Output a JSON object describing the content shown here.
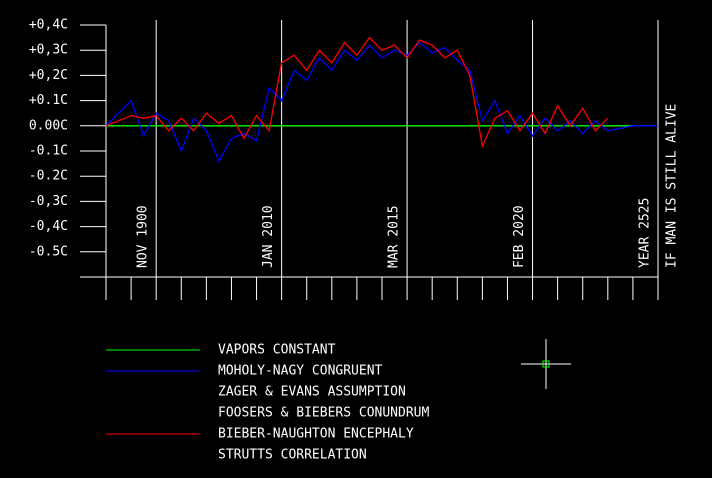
{
  "chart_data": {
    "type": "line",
    "x": [
      0,
      0.5,
      1,
      1.5,
      2,
      2.5,
      3,
      3.5,
      4,
      4.5,
      5,
      5.5,
      6,
      6.5,
      7,
      7.5,
      8,
      8.5,
      9,
      9.5,
      10,
      10.5,
      11,
      11.5,
      12,
      12.5,
      13,
      13.5,
      14,
      14.5,
      15,
      15.5,
      16,
      16.5,
      17,
      17.5,
      18,
      18.5,
      19,
      19.5,
      20,
      20.5,
      21,
      21.5,
      22
    ],
    "series": [
      {
        "color": "#00ff00",
        "values": [
          0,
          0,
          0,
          0,
          0,
          0,
          0,
          0,
          0,
          0,
          0,
          0,
          0,
          0,
          0,
          0,
          0,
          0,
          0,
          0,
          0,
          0,
          0,
          0,
          0,
          0,
          0,
          0,
          0,
          0,
          0,
          0,
          0,
          0,
          0,
          0,
          0,
          0,
          0,
          0,
          0,
          0,
          0,
          0,
          0
        ]
      },
      {
        "color": "#0000ff",
        "values": [
          0,
          0.05,
          0.1,
          -0.04,
          0.05,
          0.02,
          -0.1,
          0.03,
          -0.02,
          -0.14,
          -0.05,
          -0.03,
          -0.06,
          0.15,
          0.1,
          0.22,
          0.18,
          0.27,
          0.22,
          0.3,
          0.26,
          0.32,
          0.27,
          0.3,
          0.28,
          0.33,
          0.29,
          0.31,
          0.26,
          0.22,
          0.02,
          0.1,
          -0.03,
          0.04,
          -0.04,
          0.03,
          -0.02,
          0.02,
          -0.03,
          0.02,
          -0.02,
          -0.01,
          0,
          0,
          0
        ]
      },
      {
        "color": "#ff0000",
        "values": [
          0,
          0.02,
          0.04,
          0.03,
          0.04,
          -0.02,
          0.03,
          -0.02,
          0.05,
          0.01,
          0.04,
          -0.05,
          0.04,
          -0.02,
          0.25,
          0.28,
          0.22,
          0.3,
          0.25,
          0.33,
          0.28,
          0.35,
          0.3,
          0.32,
          0.27,
          0.34,
          0.32,
          0.27,
          0.3,
          0.2,
          -0.08,
          0.03,
          0.06,
          -0.02,
          0.05,
          -0.03,
          0.08,
          0,
          0.07,
          -0.02,
          0.03,
          null,
          null,
          null,
          null
        ]
      }
    ],
    "legend": [
      {
        "label": "VAPORS CONSTANT",
        "color": "#00ff00"
      },
      {
        "label": "MOHOLY-NAGY CONGRUENT",
        "color": "#0000ff"
      },
      {
        "label": "ZAGER & EVANS ASSUMPTION",
        "color": null
      },
      {
        "label": "FOOSERS & BIEBERS CONUNDRUM",
        "color": null
      },
      {
        "label": "BIEBER-NAUGHTON ENCEPHALY",
        "color": "#ff0000"
      },
      {
        "label": "STRUTTS CORRELATION",
        "color": null
      }
    ],
    "annotations": [
      {
        "x": 2,
        "text": "NOV 1900"
      },
      {
        "x": 7,
        "text": "JAN 2010"
      },
      {
        "x": 12,
        "text": "MAR 2015"
      },
      {
        "x": 17,
        "text": "FEB 2020"
      },
      {
        "x": 22,
        "text": "YEAR 2525"
      },
      {
        "x": 22,
        "text": "IF MAN IS STILL ALIVE"
      }
    ],
    "xlim": [
      0,
      22
    ],
    "xticks": [
      0,
      1,
      2,
      3,
      4,
      5,
      6,
      7,
      8,
      9,
      10,
      11,
      12,
      13,
      14,
      15,
      16,
      17,
      18,
      19,
      20,
      21,
      22
    ],
    "ylim": [
      -0.6,
      0.4
    ],
    "yticks": [
      {
        "value": 0.4,
        "label": "+0,4C"
      },
      {
        "value": 0.3,
        "label": "+0,3C"
      },
      {
        "value": 0.2,
        "label": "+0,2C"
      },
      {
        "value": 0.1,
        "label": "+0.1C"
      },
      {
        "value": 0,
        "label": "0.00C"
      },
      {
        "value": -0.1,
        "label": "-0.1C"
      },
      {
        "value": -0.2,
        "label": "-0.2C"
      },
      {
        "value": -0.3,
        "label": "-0,3C"
      },
      {
        "value": -0.4,
        "label": "-0,4C"
      },
      {
        "value": -0.5,
        "label": "-0.5C"
      }
    ]
  }
}
